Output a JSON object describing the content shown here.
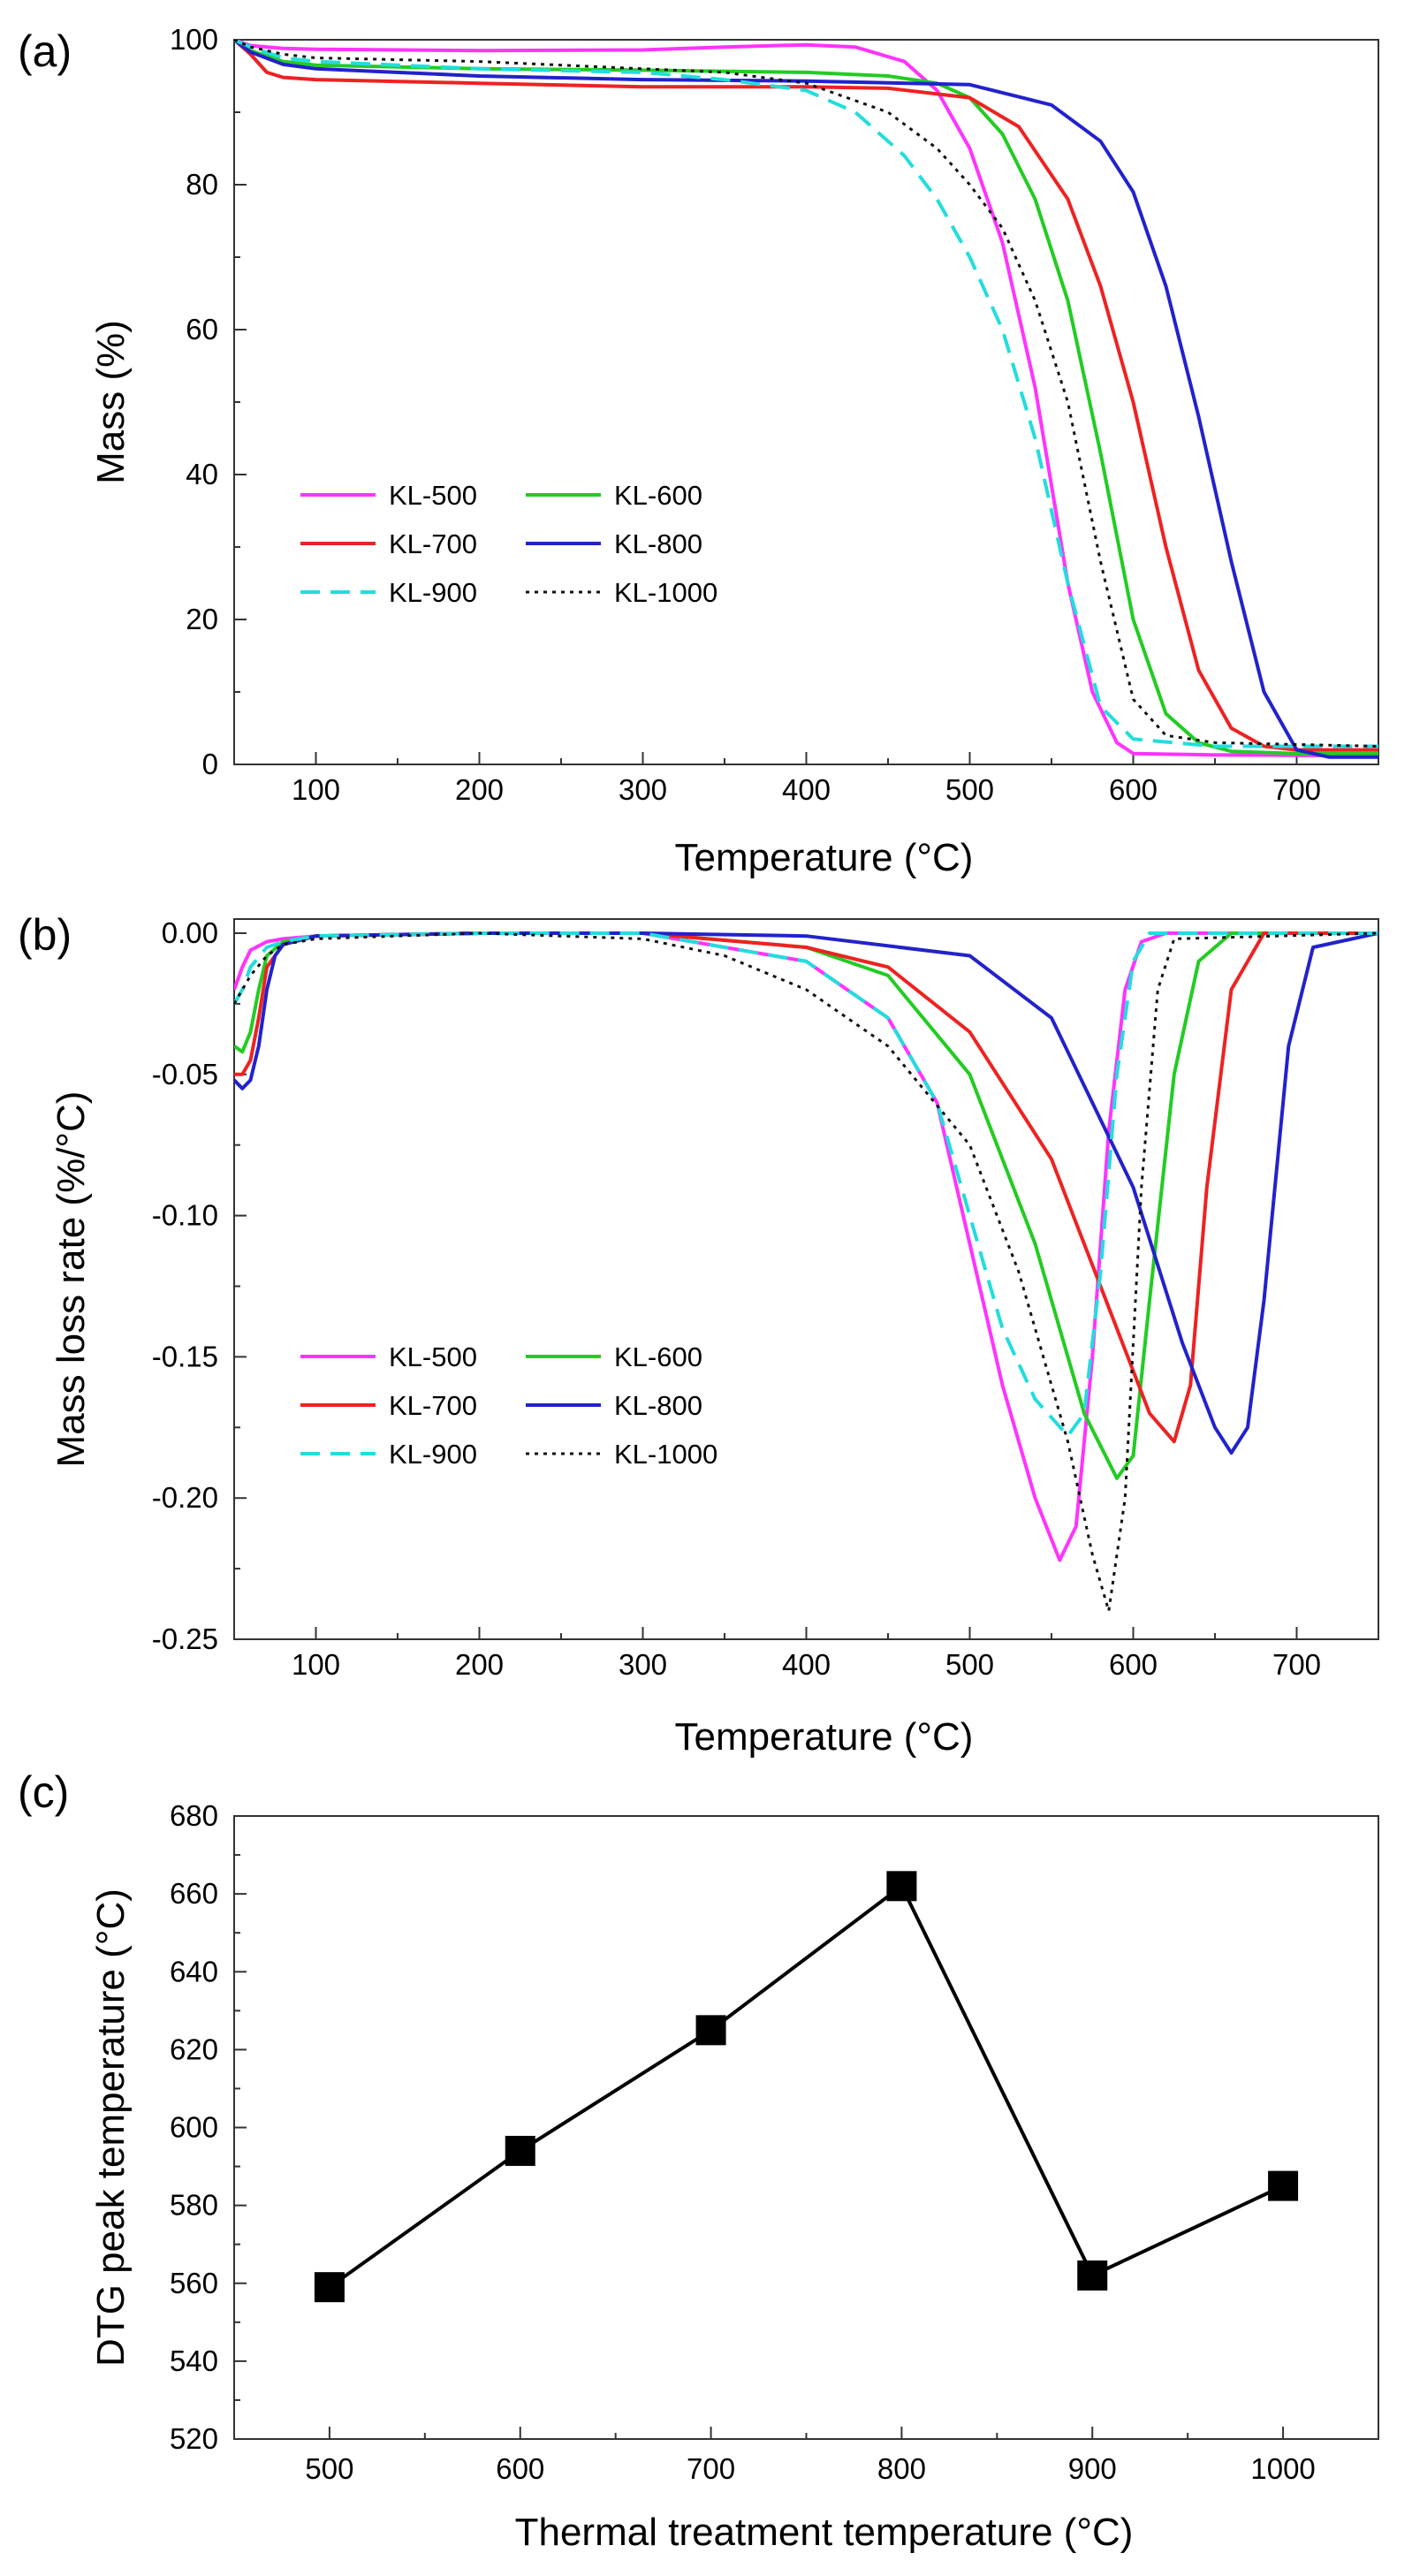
{
  "colors": {
    "KL-500": "#ff33ff",
    "KL-600": "#22cc22",
    "KL-700": "#ee2222",
    "KL-800": "#2222cc",
    "KL-900": "#22dddd",
    "KL-1000": "#111111"
  },
  "chart_data": [
    {
      "type": "line",
      "panel": "(a)",
      "xlabel": "Temperature (°C)",
      "ylabel": "Mass (%)",
      "xlim": [
        50,
        750
      ],
      "ylim": [
        0,
        100
      ],
      "xticks": [
        100,
        200,
        300,
        400,
        500,
        600,
        700
      ],
      "yticks": [
        0,
        20,
        40,
        60,
        80,
        100
      ],
      "legend_position": "lower-left",
      "series": [
        {
          "name": "KL-500",
          "dash": "solid",
          "x": [
            50,
            60,
            80,
            100,
            200,
            300,
            350,
            400,
            430,
            460,
            480,
            500,
            520,
            540,
            560,
            575,
            590,
            600,
            650,
            750
          ],
          "y": [
            100,
            99.2,
            98.8,
            98.7,
            98.5,
            98.6,
            99,
            99.3,
            99,
            97,
            93,
            85,
            72,
            52,
            25,
            10,
            3,
            1.5,
            1.3,
            1.2
          ]
        },
        {
          "name": "KL-600",
          "dash": "solid",
          "x": [
            50,
            60,
            80,
            100,
            200,
            300,
            400,
            450,
            480,
            500,
            520,
            540,
            560,
            580,
            600,
            620,
            640,
            660,
            700,
            750
          ],
          "y": [
            100,
            98.5,
            97,
            96.5,
            96,
            95.8,
            95.5,
            95,
            94,
            92,
            87,
            78,
            64,
            43,
            20,
            7,
            3,
            1.8,
            1.5,
            1.5
          ]
        },
        {
          "name": "KL-700",
          "dash": "solid",
          "x": [
            50,
            60,
            70,
            80,
            100,
            200,
            300,
            400,
            450,
            500,
            530,
            560,
            580,
            600,
            620,
            640,
            660,
            680,
            700,
            750
          ],
          "y": [
            100,
            98,
            95.5,
            94.8,
            94.5,
            94,
            93.5,
            93.5,
            93.3,
            92,
            88,
            78,
            66,
            50,
            30,
            13,
            5,
            2.5,
            2,
            2
          ]
        },
        {
          "name": "KL-800",
          "dash": "solid",
          "x": [
            50,
            60,
            80,
            100,
            200,
            300,
            400,
            500,
            550,
            580,
            600,
            620,
            640,
            660,
            680,
            700,
            720,
            750
          ],
          "y": [
            100,
            98.3,
            96.6,
            96,
            95,
            94.5,
            94.3,
            93.8,
            91,
            86,
            79,
            66,
            48,
            28,
            10,
            2,
            1,
            1
          ]
        },
        {
          "name": "KL-900",
          "dash": "dashed",
          "x": [
            50,
            60,
            80,
            100,
            200,
            300,
            350,
            400,
            430,
            460,
            480,
            500,
            520,
            540,
            560,
            580,
            600,
            650,
            750
          ],
          "y": [
            100,
            99,
            97.5,
            97,
            96,
            95.5,
            94.5,
            93,
            90,
            84,
            78,
            70,
            60,
            45,
            25,
            8,
            3.5,
            2.5,
            2.5
          ]
        },
        {
          "name": "KL-1000",
          "dash": "dotted",
          "x": [
            50,
            60,
            80,
            100,
            200,
            300,
            350,
            400,
            450,
            480,
            500,
            520,
            540,
            560,
            580,
            600,
            620,
            650,
            750
          ],
          "y": [
            100,
            99,
            98,
            97.5,
            97,
            96,
            95.5,
            94,
            90,
            85,
            80,
            74,
            64,
            50,
            28,
            9,
            4,
            3,
            2.5
          ]
        }
      ]
    },
    {
      "type": "line",
      "panel": "(b)",
      "xlabel": "Temperature (°C)",
      "ylabel": "Mass loss rate (%/°C)",
      "xlim": [
        50,
        750
      ],
      "ylim": [
        -0.25,
        0.005
      ],
      "xticks": [
        100,
        200,
        300,
        400,
        500,
        600,
        700
      ],
      "yticks": [
        -0.25,
        -0.2,
        -0.15,
        -0.1,
        -0.05,
        0.0
      ],
      "ytick_labels": [
        "-0.25",
        "-0.20",
        "-0.15",
        "-0.10",
        "-0.05",
        "0.00"
      ],
      "legend_position": "lower-left",
      "series": [
        {
          "name": "KL-500",
          "dash": "solid",
          "x": [
            50,
            55,
            60,
            70,
            80,
            100,
            200,
            300,
            400,
            450,
            480,
            500,
            520,
            540,
            555,
            565,
            575,
            585,
            595,
            605,
            620,
            750
          ],
          "y": [
            -0.02,
            -0.012,
            -0.006,
            -0.003,
            -0.002,
            -0.001,
            0,
            0,
            -0.01,
            -0.03,
            -0.06,
            -0.11,
            -0.16,
            -0.2,
            -0.222,
            -0.21,
            -0.15,
            -0.07,
            -0.02,
            -0.003,
            0,
            0
          ]
        },
        {
          "name": "KL-600",
          "dash": "solid",
          "x": [
            50,
            55,
            60,
            65,
            70,
            80,
            100,
            200,
            300,
            400,
            450,
            500,
            540,
            570,
            590,
            600,
            610,
            625,
            640,
            660,
            750
          ],
          "y": [
            -0.04,
            -0.042,
            -0.035,
            -0.02,
            -0.008,
            -0.003,
            -0.001,
            0,
            0,
            -0.005,
            -0.015,
            -0.05,
            -0.11,
            -0.17,
            -0.193,
            -0.185,
            -0.13,
            -0.05,
            -0.01,
            0,
            0
          ]
        },
        {
          "name": "KL-700",
          "dash": "solid",
          "x": [
            50,
            55,
            60,
            65,
            70,
            80,
            100,
            200,
            300,
            400,
            450,
            500,
            550,
            590,
            610,
            625,
            635,
            645,
            660,
            680,
            750
          ],
          "y": [
            -0.05,
            -0.05,
            -0.045,
            -0.03,
            -0.012,
            -0.004,
            -0.001,
            0,
            0,
            -0.005,
            -0.012,
            -0.035,
            -0.08,
            -0.14,
            -0.17,
            -0.18,
            -0.16,
            -0.09,
            -0.02,
            0,
            0
          ]
        },
        {
          "name": "KL-800",
          "dash": "solid",
          "x": [
            50,
            55,
            60,
            65,
            70,
            75,
            80,
            100,
            200,
            300,
            400,
            500,
            550,
            600,
            630,
            650,
            660,
            670,
            680,
            695,
            710,
            750
          ],
          "y": [
            -0.052,
            -0.055,
            -0.052,
            -0.04,
            -0.02,
            -0.008,
            -0.004,
            -0.001,
            0,
            0,
            -0.001,
            -0.008,
            -0.03,
            -0.09,
            -0.145,
            -0.175,
            -0.184,
            -0.175,
            -0.13,
            -0.04,
            -0.005,
            0
          ]
        },
        {
          "name": "KL-900",
          "dash": "dashed",
          "x": [
            50,
            55,
            60,
            70,
            80,
            100,
            200,
            300,
            400,
            450,
            480,
            500,
            520,
            540,
            560,
            570,
            580,
            590,
            600,
            610,
            750
          ],
          "y": [
            -0.025,
            -0.02,
            -0.012,
            -0.005,
            -0.003,
            -0.001,
            0,
            0,
            -0.01,
            -0.03,
            -0.06,
            -0.1,
            -0.14,
            -0.165,
            -0.178,
            -0.17,
            -0.12,
            -0.05,
            -0.01,
            0,
            0
          ]
        },
        {
          "name": "KL-1000",
          "dash": "dotted",
          "x": [
            50,
            55,
            60,
            70,
            80,
            100,
            200,
            300,
            350,
            400,
            450,
            500,
            530,
            560,
            575,
            585,
            595,
            605,
            615,
            625,
            750
          ],
          "y": [
            -0.025,
            -0.02,
            -0.015,
            -0.008,
            -0.004,
            -0.002,
            0,
            -0.002,
            -0.008,
            -0.02,
            -0.04,
            -0.075,
            -0.12,
            -0.18,
            -0.22,
            -0.24,
            -0.2,
            -0.09,
            -0.02,
            -0.002,
            0
          ]
        }
      ]
    },
    {
      "type": "line",
      "panel": "(c)",
      "xlabel": "Thermal treatment temperature (°C)",
      "ylabel": "DTG peak temperature (°C)",
      "xlim": [
        450,
        1050
      ],
      "ylim": [
        520,
        680
      ],
      "xticks": [
        500,
        600,
        700,
        800,
        900,
        1000
      ],
      "yticks": [
        520,
        540,
        560,
        580,
        600,
        620,
        640,
        660,
        680
      ],
      "series": [
        {
          "marker": "square",
          "x": [
            500,
            600,
            700,
            800,
            900,
            1000
          ],
          "y": [
            559,
            594,
            625,
            662,
            562,
            585
          ]
        }
      ]
    }
  ]
}
